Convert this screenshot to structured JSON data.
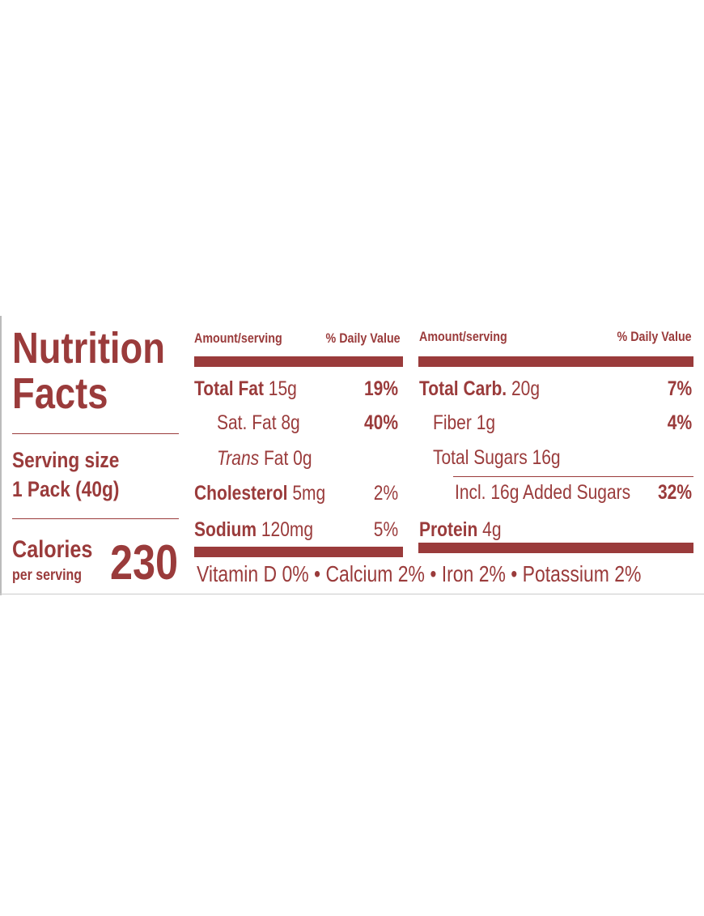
{
  "label": {
    "title": "Nutrition Facts",
    "serving_size_label": "Serving size",
    "serving_size": "1 Pack (40g)",
    "calories_label": "Calories",
    "calories_sub": "per serving",
    "calories": "230",
    "left": {
      "amount_header": "Amount/serving",
      "dv_header": "% Daily Value",
      "rows": [
        {
          "name": "Total Fat",
          "amount": "15g",
          "dv": "19%"
        },
        {
          "name": "Sat. Fat",
          "amount": "8g",
          "dv": "40%"
        },
        {
          "name_italic": "Trans",
          "name": "Fat",
          "amount": "0g"
        },
        {
          "name": "Cholesterol",
          "amount": "5mg",
          "dv": "2%"
        },
        {
          "name": "Sodium",
          "amount": "120mg",
          "dv": "5%"
        }
      ]
    },
    "right": {
      "amount_header": "Amount/serving",
      "dv_header": "% Daily Value",
      "rows": [
        {
          "name": "Total Carb.",
          "amount": "20g",
          "dv": "7%"
        },
        {
          "name": "Fiber",
          "amount": "1g",
          "dv": "4%"
        },
        {
          "name": "Total Sugars",
          "amount": "16g"
        },
        {
          "name": "Incl. 16g Added Sugars",
          "dv": "32%"
        },
        {
          "name": "Protein",
          "amount": "4g"
        }
      ]
    },
    "footer": "Vitamin D 0% • Calcium 2% • Iron 2% • Potassium 2%"
  }
}
